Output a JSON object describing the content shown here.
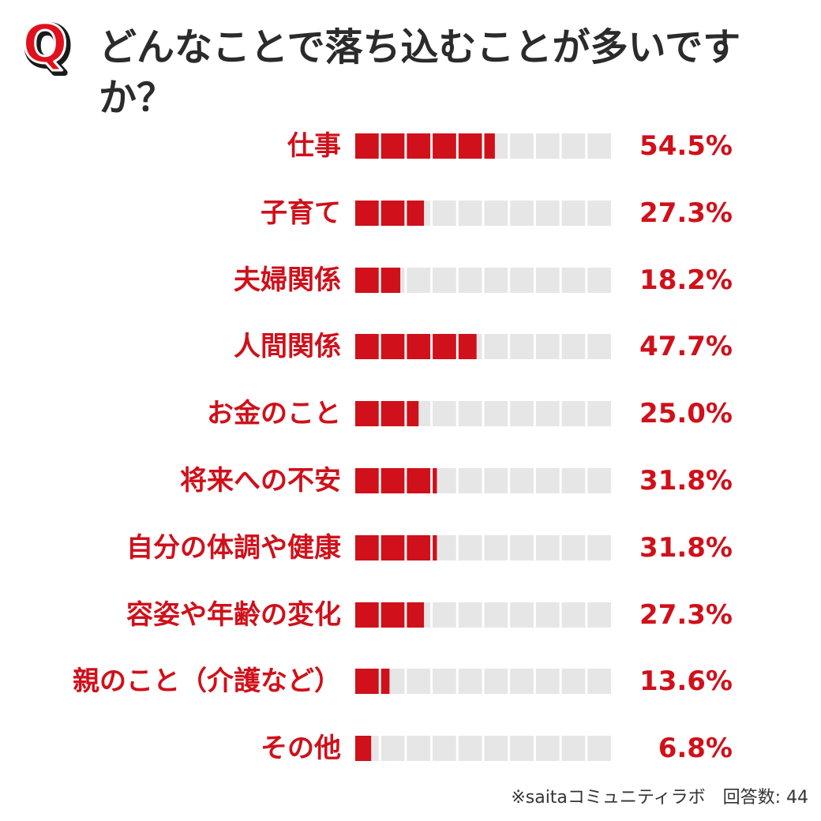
{
  "question": {
    "badge": "Q",
    "text": "どんなことで落ち込むことが多いですか？"
  },
  "chart_data": {
    "type": "bar",
    "orientation": "horizontal",
    "categories": [
      "仕事",
      "子育て",
      "夫婦関係",
      "人間関係",
      "お金のこと",
      "将来への不安",
      "自分の体調や健康",
      "容姿や年齢の変化",
      "親のこと（介護など）",
      "その他"
    ],
    "values": [
      54.5,
      27.3,
      18.2,
      47.7,
      25.0,
      31.8,
      31.8,
      27.3,
      13.6,
      6.8
    ],
    "value_labels": [
      "54.5%",
      "27.3%",
      "18.2%",
      "47.7%",
      "25.0%",
      "31.8%",
      "31.8%",
      "27.3%",
      "13.6%",
      "6.8%"
    ],
    "unit": "%",
    "xlim": [
      0,
      100
    ],
    "segments": 10,
    "colors": {
      "bar": "#d0101a",
      "track": "#e6e6e6",
      "label": "#d0101a"
    }
  },
  "footer": {
    "source": "※saitaコミュニティラボ　回答数: 44"
  }
}
